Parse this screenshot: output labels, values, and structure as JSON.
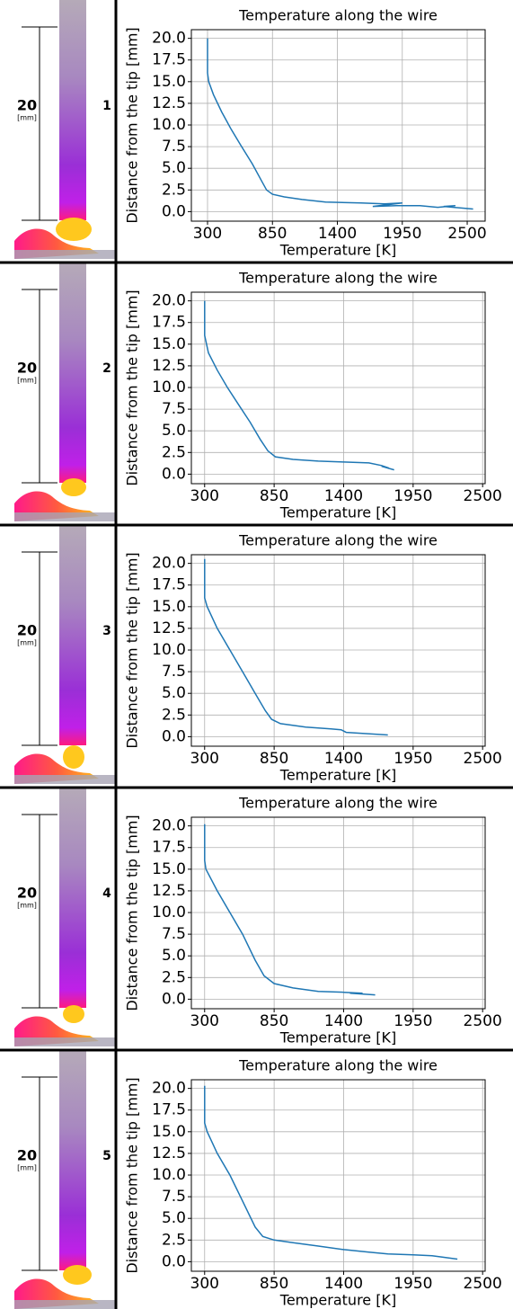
{
  "chart_data": [
    {
      "type": "line",
      "title": "Temperature along the wire",
      "x_label": "Temperature [K]",
      "y_label": "Distance from the tip [mm]",
      "panel_label": "1",
      "scale_label": "20",
      "scale_unit": "[mm]",
      "x": [
        300,
        300,
        310,
        350,
        420,
        500,
        580,
        680,
        760,
        800,
        850,
        950,
        1100,
        1300,
        1600,
        1800,
        1950,
        1700,
        1900,
        2100,
        2250,
        2400,
        2300,
        2550
      ],
      "series": [
        {
          "color": "#1f77b4",
          "values": [
            20,
            16,
            15,
            13.5,
            11.5,
            9.5,
            7.7,
            5.5,
            3.5,
            2.5,
            2,
            1.7,
            1.4,
            1.1,
            1.0,
            0.9,
            1.0,
            0.6,
            0.7,
            0.7,
            0.5,
            0.7,
            0.6,
            0.3
          ]
        }
      ],
      "xlim": [
        163,
        2652
      ],
      "ylim": [
        -1.1,
        21
      ],
      "xticks": [
        300,
        850,
        1400,
        1950,
        2500
      ],
      "yticks": [
        {
          "value": 0,
          "label": "0.0"
        },
        2.5,
        {
          "value": 5,
          "label": "5.0"
        },
        7.5,
        {
          "value": 10,
          "label": "10.0"
        },
        12.5,
        {
          "value": 15,
          "label": "15.0"
        },
        17.5,
        {
          "value": 20,
          "label": "20.0"
        }
      ],
      "grid": true
    },
    {
      "type": "line",
      "title": "Temperature along the wire",
      "x_label": "Temperature [K]",
      "y_label": "Distance from the tip [mm]",
      "panel_label": "2",
      "scale_label": "20",
      "scale_unit": "[mm]",
      "x": [
        300,
        300,
        330,
        400,
        480,
        570,
        660,
        740,
        800,
        860,
        1000,
        1200,
        1400,
        1600,
        1700,
        1760,
        1700,
        1800
      ],
      "series": [
        {
          "color": "#1f77b4",
          "values": [
            20,
            16,
            14,
            12,
            10,
            8,
            6,
            4,
            2.7,
            2,
            1.7,
            1.5,
            1.4,
            1.3,
            1.0,
            0.7,
            0.9,
            0.5
          ]
        }
      ],
      "xlim": [
        195,
        2520
      ],
      "ylim": [
        -1.1,
        21
      ],
      "xticks": [
        300,
        850,
        1400,
        1950,
        2500
      ],
      "yticks": [
        {
          "value": 0,
          "label": "0.0"
        },
        2.5,
        {
          "value": 5,
          "label": "5.0"
        },
        7.5,
        {
          "value": 10,
          "label": "10.0"
        },
        12.5,
        {
          "value": 15,
          "label": "15.0"
        },
        17.5,
        {
          "value": 20,
          "label": "20.0"
        }
      ],
      "grid": true
    },
    {
      "type": "line",
      "title": "Temperature along the wire",
      "x_label": "Temperature [K]",
      "y_label": "Distance from the tip [mm]",
      "panel_label": "3",
      "scale_label": "20",
      "scale_unit": "[mm]",
      "x": [
        300,
        300,
        320,
        400,
        500,
        600,
        700,
        780,
        830,
        900,
        1100,
        1300,
        1380,
        1420,
        1750
      ],
      "series": [
        {
          "color": "#1f77b4",
          "values": [
            20.5,
            16,
            15,
            12.5,
            10,
            7.5,
            5,
            3,
            2,
            1.5,
            1.1,
            0.9,
            0.8,
            0.5,
            0.2
          ]
        }
      ],
      "xlim": [
        195,
        2520
      ],
      "ylim": [
        -1.1,
        21
      ],
      "xticks": [
        300,
        850,
        1400,
        1950,
        2500
      ],
      "yticks": [
        {
          "value": 0,
          "label": "0.0"
        },
        2.5,
        {
          "value": 5,
          "label": "5.0"
        },
        7.5,
        {
          "value": 10,
          "label": "10.0"
        },
        12.5,
        {
          "value": 15,
          "label": "15.0"
        },
        17.5,
        {
          "value": 20,
          "label": "20.0"
        }
      ],
      "grid": true
    },
    {
      "type": "line",
      "title": "Temperature along the wire",
      "x_label": "Temperature [K]",
      "y_label": "Distance from the tip [mm]",
      "panel_label": "4",
      "scale_label": "20",
      "scale_unit": "[mm]",
      "x": [
        300,
        300,
        310,
        400,
        500,
        600,
        700,
        770,
        850,
        1000,
        1200,
        1400,
        1550,
        1450,
        1650
      ],
      "series": [
        {
          "color": "#1f77b4",
          "values": [
            20.2,
            16,
            15,
            12.5,
            10,
            7.5,
            4.5,
            2.7,
            1.8,
            1.3,
            0.9,
            0.8,
            0.7,
            0.7,
            0.5
          ]
        }
      ],
      "xlim": [
        195,
        2520
      ],
      "ylim": [
        -1.1,
        21
      ],
      "xticks": [
        300,
        850,
        1400,
        1950,
        2500
      ],
      "yticks": [
        {
          "value": 0,
          "label": "0.0"
        },
        2.5,
        {
          "value": 5,
          "label": "5.0"
        },
        7.5,
        {
          "value": 10,
          "label": "10.0"
        },
        12.5,
        {
          "value": 15,
          "label": "15.0"
        },
        17.5,
        {
          "value": 20,
          "label": "20.0"
        }
      ],
      "grid": true
    },
    {
      "type": "line",
      "title": "Temperature along the wire",
      "x_label": "Temperature [K]",
      "y_label": "Distance from the tip [mm]",
      "panel_label": "5",
      "scale_label": "20",
      "scale_unit": "[mm]",
      "x": [
        300,
        300,
        320,
        400,
        500,
        600,
        700,
        760,
        850,
        1000,
        1200,
        1400,
        1600,
        1750,
        1950,
        2100,
        2300
      ],
      "series": [
        {
          "color": "#1f77b4",
          "values": [
            20.3,
            16,
            15,
            12.5,
            10,
            7,
            4,
            2.9,
            2.5,
            2.2,
            1.8,
            1.4,
            1.1,
            0.9,
            0.8,
            0.7,
            0.3
          ]
        }
      ],
      "xlim": [
        195,
        2520
      ],
      "ylim": [
        -1.1,
        21
      ],
      "xticks": [
        300,
        850,
        1400,
        1950,
        2500
      ],
      "yticks": [
        {
          "value": 0,
          "label": "0.0"
        },
        2.5,
        {
          "value": 5,
          "label": "5.0"
        },
        7.5,
        {
          "value": 10,
          "label": "10.0"
        },
        12.5,
        {
          "value": 15,
          "label": "15.0"
        },
        17.5,
        {
          "value": 20,
          "label": "20.0"
        }
      ],
      "grid": true
    }
  ]
}
